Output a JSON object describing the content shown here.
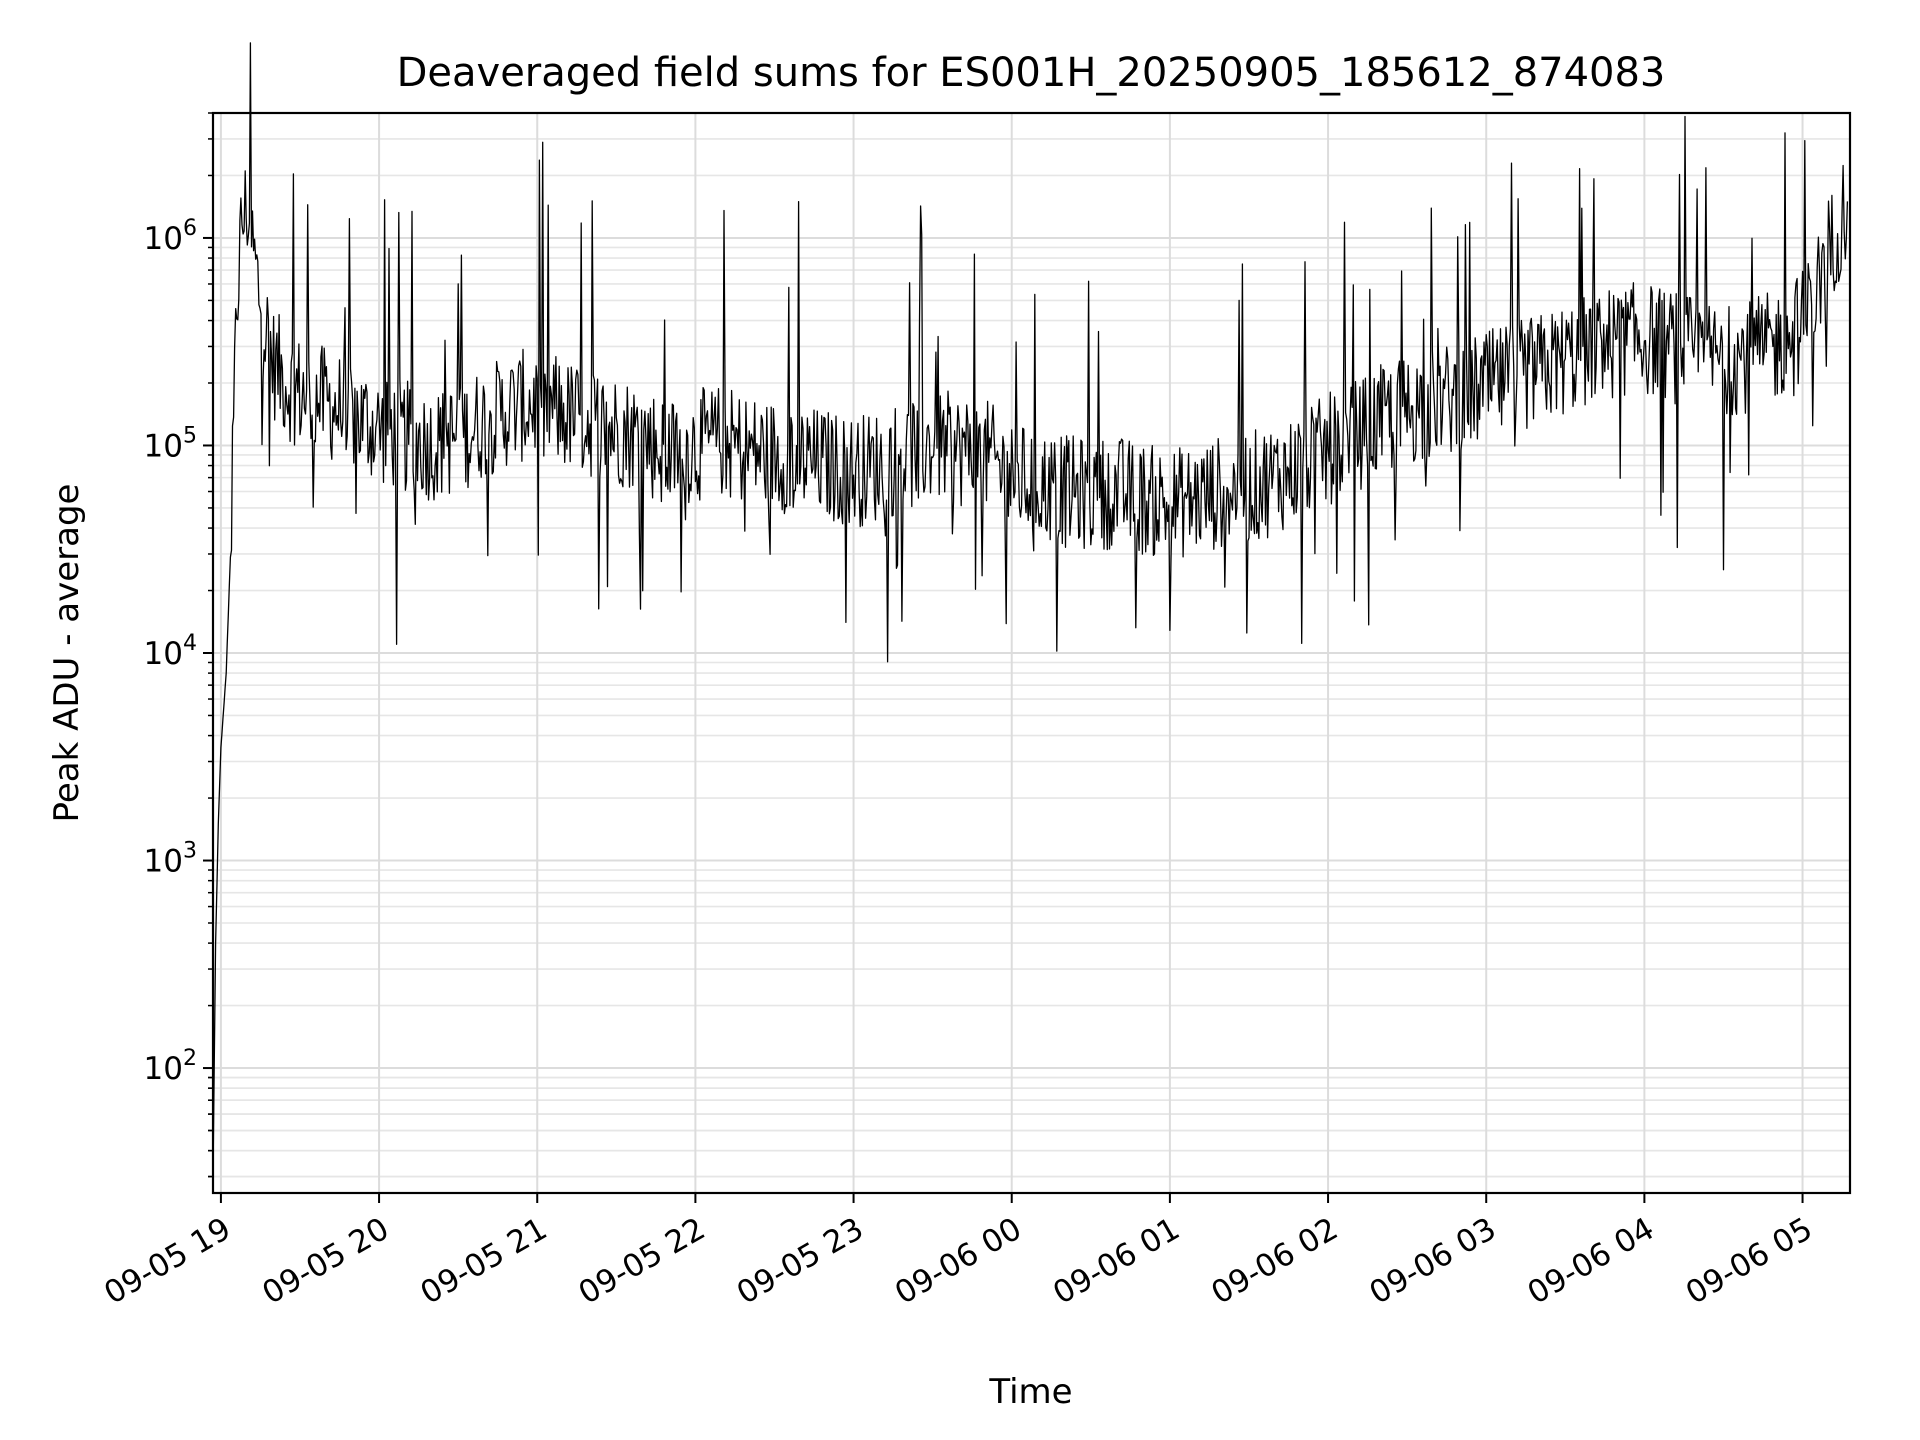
{
  "chart_data": {
    "type": "line",
    "title": "Deaveraged field sums for ES001H_20250905_185612_874083",
    "xlabel": "Time",
    "ylabel": "Peak ADU - average",
    "yscale": "log",
    "ylim": [
      25,
      4000000
    ],
    "xlim": [
      "2025-09-05 18:57",
      "2025-09-06 05:18"
    ],
    "grid": "on (major and minor)",
    "line_color": "#000000",
    "x_ticks": [
      "09-05 19",
      "09-05 20",
      "09-05 21",
      "09-05 22",
      "09-05 23",
      "09-06 00",
      "09-06 01",
      "09-06 02",
      "09-06 03",
      "09-06 04",
      "09-06 05"
    ],
    "y_ticks": [
      {
        "value": 100,
        "base": "10",
        "exp": "2"
      },
      {
        "value": 1000,
        "base": "10",
        "exp": "3"
      },
      {
        "value": 10000,
        "base": "10",
        "exp": "4"
      },
      {
        "value": 100000,
        "base": "10",
        "exp": "5"
      },
      {
        "value": 1000000,
        "base": "10",
        "exp": "6"
      }
    ],
    "series": [
      {
        "x": [
          "2025-09-05 18:57",
          "2025-09-05 18:58",
          "2025-09-05 18:59",
          "2025-09-05 19:00",
          "2025-09-05 19:02",
          "2025-09-05 19:04",
          "2025-09-05 19:06",
          "2025-09-05 19:08",
          "2025-09-05 19:10",
          "2025-09-05 19:12",
          "2025-09-05 19:14",
          "2025-09-05 19:16",
          "2025-09-05 19:20",
          "2025-09-05 19:25",
          "2025-09-05 19:30",
          "2025-09-05 19:40",
          "2025-09-05 19:50",
          "2025-09-05 20:00",
          "2025-09-05 20:10",
          "2025-09-05 20:20",
          "2025-09-05 20:30",
          "2025-09-05 20:40",
          "2025-09-05 20:50",
          "2025-09-05 21:00",
          "2025-09-05 21:10",
          "2025-09-05 21:20",
          "2025-09-05 21:30",
          "2025-09-05 21:40",
          "2025-09-05 21:50",
          "2025-09-05 22:00",
          "2025-09-05 22:10",
          "2025-09-05 22:20",
          "2025-09-05 22:30",
          "2025-09-05 22:40",
          "2025-09-05 22:50",
          "2025-09-05 23:00",
          "2025-09-05 23:10",
          "2025-09-05 23:20",
          "2025-09-05 23:30",
          "2025-09-05 23:40",
          "2025-09-05 23:50",
          "2025-09-06 00:00",
          "2025-09-06 00:10",
          "2025-09-06 00:20",
          "2025-09-06 00:30",
          "2025-09-06 00:40",
          "2025-09-06 00:50",
          "2025-09-06 01:00",
          "2025-09-06 01:10",
          "2025-09-06 01:20",
          "2025-09-06 01:30",
          "2025-09-06 01:40",
          "2025-09-06 01:50",
          "2025-09-06 02:00",
          "2025-09-06 02:10",
          "2025-09-06 02:20",
          "2025-09-06 02:30",
          "2025-09-06 02:40",
          "2025-09-06 02:50",
          "2025-09-06 03:00",
          "2025-09-06 03:10",
          "2025-09-06 03:20",
          "2025-09-06 03:30",
          "2025-09-06 03:40",
          "2025-09-06 03:50",
          "2025-09-06 04:00",
          "2025-09-06 04:10",
          "2025-09-06 04:20",
          "2025-09-06 04:30",
          "2025-09-06 04:40",
          "2025-09-06 04:50",
          "2025-09-06 04:55",
          "2025-09-06 05:00",
          "2025-09-06 05:03",
          "2025-09-06 05:06",
          "2025-09-06 05:09",
          "2025-09-06 05:12",
          "2025-09-06 05:15",
          "2025-09-06 05:17"
        ],
        "y": [
          30,
          400,
          1500,
          3500,
          8000,
          40000,
          500000,
          1200000,
          1400000,
          900000,
          600000,
          400000,
          250000,
          200000,
          180000,
          160000,
          140000,
          120000,
          110000,
          100000,
          110000,
          130000,
          150000,
          160000,
          140000,
          130000,
          120000,
          110000,
          90000,
          100000,
          105000,
          95000,
          90000,
          85000,
          80000,
          75000,
          80000,
          90000,
          100000,
          95000,
          90000,
          70000,
          65000,
          60000,
          58000,
          60000,
          55000,
          52000,
          55000,
          60000,
          62000,
          70000,
          80000,
          95000,
          110000,
          130000,
          150000,
          160000,
          170000,
          190000,
          210000,
          230000,
          260000,
          290000,
          320000,
          330000,
          300000,
          280000,
          260000,
          270000,
          300000,
          340000,
          380000,
          450000,
          600000,
          800000,
          1000000,
          1300000,
          1500000
        ]
      }
    ]
  }
}
